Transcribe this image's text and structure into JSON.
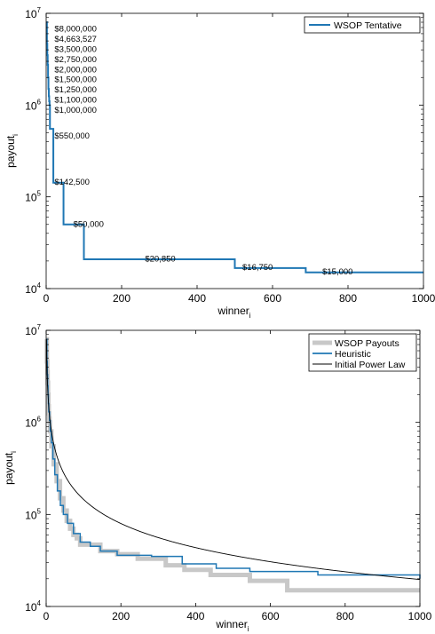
{
  "colors": {
    "wsop_tentative": "#1f77b4",
    "wsop_payouts": "#c8c8c8",
    "heuristic": "#1f77b4",
    "power_law": "#000000"
  },
  "chart_data": [
    {
      "type": "line",
      "scale": {
        "x": "linear",
        "y": "log"
      },
      "xlim": [
        0,
        1000
      ],
      "ylim": [
        10000,
        10000000
      ],
      "xticks": [
        0,
        200,
        400,
        600,
        800,
        1000
      ],
      "xtick_labels": [
        "0",
        "200",
        "400",
        "600",
        "800",
        "1000"
      ],
      "ytick_labels": [
        {
          "base": "10",
          "exp": "4"
        },
        {
          "base": "10",
          "exp": "5"
        },
        {
          "base": "10",
          "exp": "6"
        },
        {
          "base": "10",
          "exp": "7"
        }
      ],
      "xlabel": {
        "base": "winner",
        "sub": "i"
      },
      "ylabel": {
        "base": "payout",
        "sub": "i"
      },
      "legend_position": "top-right",
      "series": [
        {
          "name": "WSOP Tentative",
          "step_points": [
            [
              1,
              8000000
            ],
            [
              2,
              4663527
            ],
            [
              3,
              3500000
            ],
            [
              4,
              2750000
            ],
            [
              5,
              2000000
            ],
            [
              6,
              1500000
            ],
            [
              7,
              1250000
            ],
            [
              8,
              1100000
            ],
            [
              9,
              1000000
            ],
            [
              10,
              550000
            ],
            [
              19,
              142500
            ],
            [
              46,
              50000
            ],
            [
              100,
              20850
            ],
            [
              500,
              16750
            ],
            [
              688,
              15000
            ],
            [
              1000,
              15000
            ]
          ]
        }
      ],
      "annotations": [
        {
          "text": "$8,000,000",
          "x": 22,
          "y": 6300000
        },
        {
          "text": "$4,663,527",
          "x": 22,
          "y": 4900000
        },
        {
          "text": "$3,500,000",
          "x": 22,
          "y": 3800000
        },
        {
          "text": "$2,750,000",
          "x": 22,
          "y": 2950000
        },
        {
          "text": "$2,000,000",
          "x": 22,
          "y": 2280000
        },
        {
          "text": "$1,500,000",
          "x": 22,
          "y": 1770000
        },
        {
          "text": "$1,250,000",
          "x": 22,
          "y": 1370000
        },
        {
          "text": "$1,100,000",
          "x": 22,
          "y": 1060000
        },
        {
          "text": "$1,000,000",
          "x": 22,
          "y": 820000
        },
        {
          "text": "$550,000",
          "x": 22,
          "y": 430000
        },
        {
          "text": "$142,500",
          "x": 22,
          "y": 135000
        },
        {
          "text": "$50,000",
          "x": 72,
          "y": 47000
        },
        {
          "text": "$20,850",
          "x": 262,
          "y": 19800
        },
        {
          "text": "$16,750",
          "x": 520,
          "y": 15900
        },
        {
          "text": "$15,000",
          "x": 732,
          "y": 14300
        }
      ]
    },
    {
      "type": "line",
      "scale": {
        "x": "linear",
        "y": "log"
      },
      "xlim": [
        0,
        1000
      ],
      "ylim": [
        10000,
        10000000
      ],
      "xticks": [
        0,
        200,
        400,
        600,
        800,
        1000
      ],
      "xtick_labels": [
        "0",
        "200",
        "400",
        "600",
        "800",
        "1000"
      ],
      "ytick_labels": [
        {
          "base": "10",
          "exp": "4"
        },
        {
          "base": "10",
          "exp": "5"
        },
        {
          "base": "10",
          "exp": "6"
        },
        {
          "base": "10",
          "exp": "7"
        }
      ],
      "xlabel": {
        "base": "winner",
        "sub": "i"
      },
      "ylabel": {
        "base": "payout",
        "sub": "i"
      },
      "legend_position": "top-right",
      "series": [
        {
          "name": "WSOP Payouts",
          "step_points": [
            [
              1,
              8000000
            ],
            [
              2,
              4600000
            ],
            [
              3,
              3500000
            ],
            [
              4,
              2700000
            ],
            [
              5,
              2000000
            ],
            [
              6,
              1500000
            ],
            [
              7,
              1250000
            ],
            [
              8,
              1100000
            ],
            [
              9,
              1000000
            ],
            [
              10,
              800000
            ],
            [
              14,
              550000
            ],
            [
              20,
              350000
            ],
            [
              28,
              230000
            ],
            [
              37,
              150000
            ],
            [
              46,
              110000
            ],
            [
              55,
              85000
            ],
            [
              64,
              70000
            ],
            [
              73,
              60000
            ],
            [
              82,
              55000
            ],
            [
              91,
              47000
            ],
            [
              145,
              40000
            ],
            [
              190,
              37000
            ],
            [
              245,
              33000
            ],
            [
              320,
              28000
            ],
            [
              370,
              25000
            ],
            [
              440,
              22000
            ],
            [
              545,
              19000
            ],
            [
              645,
              15000
            ],
            [
              1000,
              15000
            ]
          ]
        },
        {
          "name": "Heuristic",
          "step_points": [
            [
              1,
              8000000
            ],
            [
              2,
              4600000
            ],
            [
              3,
              3300000
            ],
            [
              4,
              2500000
            ],
            [
              5,
              2000000
            ],
            [
              6,
              1600000
            ],
            [
              7,
              1300000
            ],
            [
              9,
              1050000
            ],
            [
              11,
              800000
            ],
            [
              14,
              600000
            ],
            [
              18,
              400000
            ],
            [
              23,
              270000
            ],
            [
              30,
              180000
            ],
            [
              38,
              125000
            ],
            [
              46,
              100000
            ],
            [
              57,
              80000
            ],
            [
              73,
              62000
            ],
            [
              91,
              50000
            ],
            [
              118,
              45000
            ],
            [
              145,
              40000
            ],
            [
              190,
              36000
            ],
            [
              282,
              35000
            ],
            [
              364,
              29000
            ],
            [
              455,
              26000
            ],
            [
              545,
              24000
            ],
            [
              727,
              22000
            ],
            [
              1000,
              20000
            ]
          ]
        },
        {
          "name": "Initial Power Law",
          "curve": {
            "c": 8000000,
            "alpha": 0.87,
            "floor_payout": 19000,
            "n": 1000
          }
        }
      ]
    }
  ]
}
